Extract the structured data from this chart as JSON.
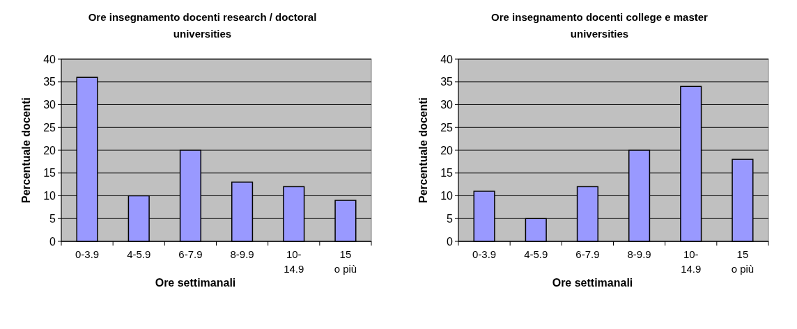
{
  "chart_data": [
    {
      "type": "bar",
      "title": "Ore insegnamento docenti research / doctoral universities",
      "xlabel": "Ore settimanali",
      "ylabel": "Percentuale docenti",
      "categories": [
        "0-3.9",
        "4-5.9",
        "6-7.9",
        "8-9.9",
        "10-14.9",
        "15 o più"
      ],
      "values": [
        36,
        10,
        20,
        13,
        12,
        9
      ],
      "color": "#9999ff",
      "ylim": [
        0,
        40
      ],
      "yticks": [
        0,
        5,
        10,
        15,
        20,
        25,
        30,
        35,
        40
      ],
      "grid": "y"
    },
    {
      "type": "bar",
      "title": "Ore insegnamento docenti college e master universities",
      "xlabel": "Ore settimanali",
      "ylabel": "Percentuale docenti",
      "categories": [
        "0-3.9",
        "4-5.9",
        "6-7.9",
        "8-9.9",
        "10-14.9",
        "15 o più"
      ],
      "values": [
        11,
        5,
        12,
        20,
        34,
        18
      ],
      "color": "#9999ff",
      "ylim": [
        0,
        40
      ],
      "yticks": [
        0,
        5,
        10,
        15,
        20,
        25,
        30,
        35,
        40
      ],
      "grid": "y"
    }
  ]
}
